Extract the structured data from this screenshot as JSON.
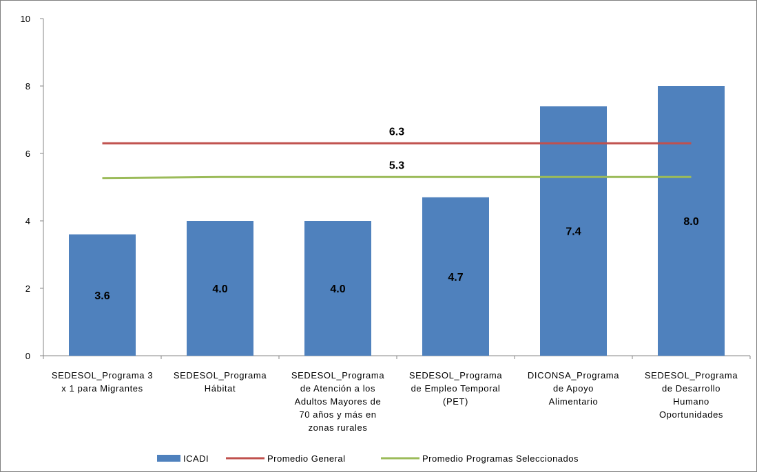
{
  "chart_data": {
    "type": "bar",
    "title": "",
    "xlabel": "",
    "ylabel": "",
    "ylim": [
      0,
      10
    ],
    "yticks": [
      0,
      2,
      4,
      6,
      8,
      10
    ],
    "grid": false,
    "legend_position": "bottom",
    "categories": [
      [
        "SEDESOL_Programa 3",
        "x 1 para Migrantes"
      ],
      [
        "SEDESOL_Programa",
        "Hábitat"
      ],
      [
        "SEDESOL_Programa",
        "de Atención a los",
        "Adultos Mayores de",
        "70 años y más en",
        "zonas rurales"
      ],
      [
        "SEDESOL_Programa",
        "de Empleo Temporal",
        "(PET)"
      ],
      [
        "DICONSA_Programa",
        "de Apoyo",
        "Alimentario"
      ],
      [
        "SEDESOL_Programa",
        "de Desarrollo",
        "Humano",
        "Oportunidades"
      ]
    ],
    "series": [
      {
        "name": "ICADI",
        "kind": "bar",
        "color": "#4f81bd",
        "values": [
          3.6,
          4.0,
          4.0,
          4.7,
          7.4,
          8.0
        ],
        "labels": [
          "3.6",
          "4.0",
          "4.0",
          "4.7",
          "7.4",
          "8.0"
        ]
      },
      {
        "name": "Promedio General",
        "kind": "line",
        "color": "#c0504d",
        "values": [
          6.3,
          6.3,
          6.3,
          6.3,
          6.3,
          6.3
        ],
        "label": "6.3"
      },
      {
        "name": "Promedio Programas Seleccionados",
        "kind": "line",
        "color": "#9bbb59",
        "values": [
          5.27,
          5.3,
          5.3,
          5.3,
          5.3,
          5.3
        ],
        "label": "5.3"
      }
    ]
  }
}
